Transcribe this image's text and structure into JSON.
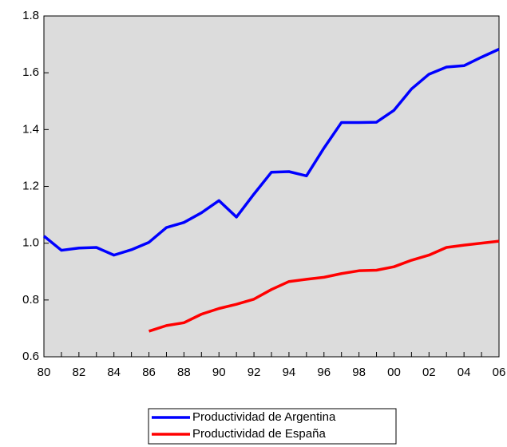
{
  "chart_data": {
    "type": "line",
    "categories": [
      "80",
      null,
      "82",
      null,
      "84",
      null,
      "86",
      null,
      "88",
      null,
      "90",
      null,
      "92",
      null,
      "94",
      null,
      "96",
      null,
      "98",
      null,
      "00",
      null,
      "02",
      null,
      "04",
      null,
      "06"
    ],
    "series": [
      {
        "name": "Productividad de Argentina",
        "color": "#0000ff",
        "values": [
          1.025,
          0.975,
          0.983,
          0.985,
          0.958,
          0.977,
          1.003,
          1.055,
          1.073,
          1.107,
          1.15,
          1.092,
          1.173,
          1.25,
          1.252,
          1.237,
          1.335,
          1.425,
          1.425,
          1.426,
          1.468,
          1.543,
          1.595,
          1.62,
          1.625,
          1.655,
          1.683
        ]
      },
      {
        "name": "Productividad de España",
        "color": "#ff0000",
        "values": [
          null,
          null,
          null,
          null,
          null,
          null,
          0.69,
          0.71,
          0.72,
          0.75,
          0.77,
          0.785,
          0.803,
          0.837,
          0.865,
          0.873,
          0.88,
          0.893,
          0.903,
          0.905,
          0.917,
          0.94,
          0.958,
          0.985,
          0.993,
          1.0,
          1.007
        ]
      }
    ],
    "ylim": [
      0.6,
      1.8
    ],
    "yticks": [
      0.6,
      0.8,
      {
        "value": 1.0,
        "label": "1.0"
      },
      1.2,
      1.4,
      1.6,
      1.8
    ],
    "background": "#dcdcdc",
    "legend": "bottom"
  }
}
